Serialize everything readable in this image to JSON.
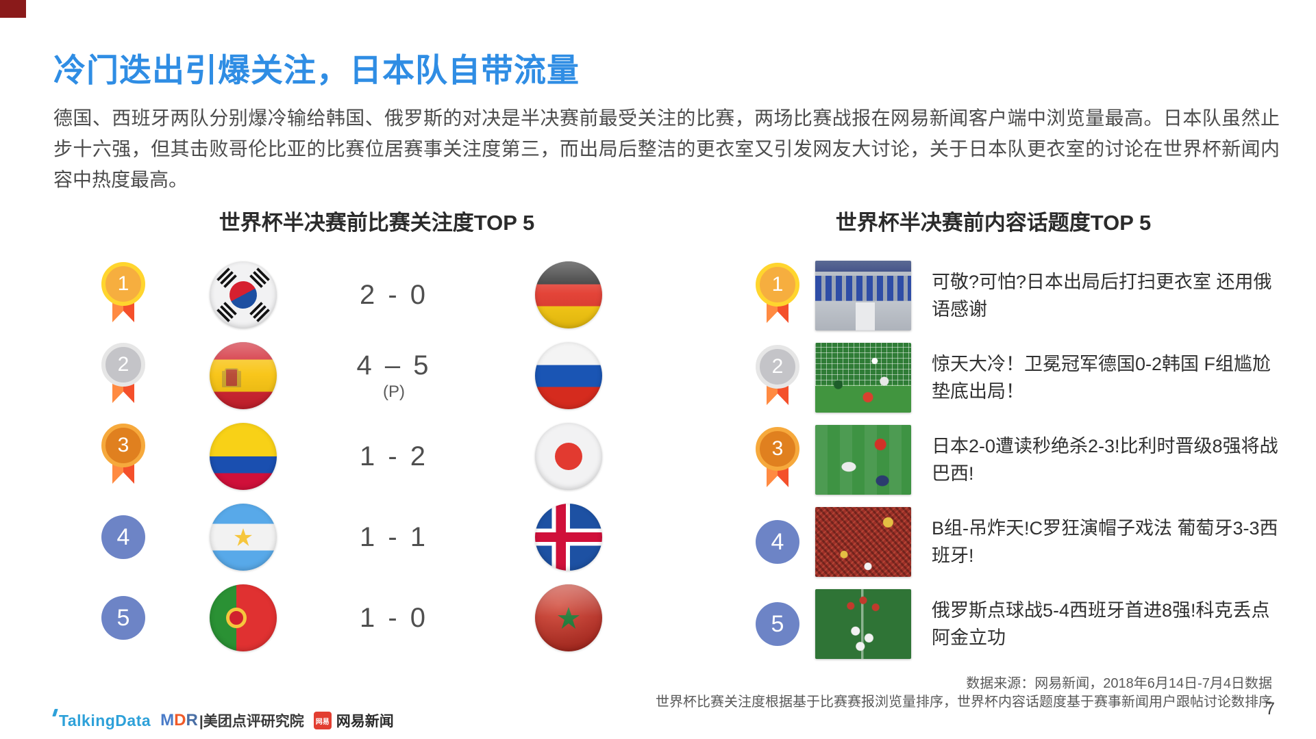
{
  "page": {
    "title": "冷门迭出引爆关注，日本队自带流量",
    "body": "德国、西班牙两队分别爆冷输给韩国、俄罗斯的对决是半决赛前最受关注的比赛，两场比赛战报在网易新闻客户端中浏览量最高。日本队虽然止步十六强，但其击败哥伦比亚的比赛位居赛事关注度第三，而出局后整洁的更衣室又引发网友大讨论，关于日本队更衣室的讨论在世界杯新闻内容中热度最高。",
    "page_number": "7"
  },
  "left_section": {
    "title": "世界杯半决赛前比赛关注度TOP 5",
    "rows": [
      {
        "rank": "1",
        "home_flag": "south-korea",
        "score": "2 - 0",
        "score_note": "",
        "away_flag": "germany"
      },
      {
        "rank": "2",
        "home_flag": "spain",
        "score": "4 – 5",
        "score_note": "(P)",
        "away_flag": "russia"
      },
      {
        "rank": "3",
        "home_flag": "colombia",
        "score": "1 - 2",
        "score_note": "",
        "away_flag": "japan"
      },
      {
        "rank": "4",
        "home_flag": "argentina",
        "score": "1 - 1",
        "score_note": "",
        "away_flag": "iceland"
      },
      {
        "rank": "5",
        "home_flag": "portugal",
        "score": "1 - 0",
        "score_note": "",
        "away_flag": "morocco"
      }
    ]
  },
  "right_section": {
    "title": "世界杯半决赛前内容话题度TOP 5",
    "rows": [
      {
        "rank": "1",
        "thumbnail": "locker-room",
        "headline": "可敬?可怕?日本出局后打扫更衣室 还用俄语感谢"
      },
      {
        "rank": "2",
        "thumbnail": "goal-net",
        "headline": "惊天大冷！卫冕冠军德国0-2韩国 F组尴尬垫底出局！"
      },
      {
        "rank": "3",
        "thumbnail": "players-on-pitch",
        "headline": "日本2-0遭读秒绝杀2-3!比利时晋级8强将战巴西!"
      },
      {
        "rank": "4",
        "thumbnail": "red-crowd",
        "headline": "B组-吊炸天!C罗狂演帽子戏法 葡萄牙3-3西班牙!"
      },
      {
        "rank": "5",
        "thumbnail": "pitch-celebration",
        "headline": "俄罗斯点球战5-4西班牙首进8强!科克丢点阿金立功"
      }
    ]
  },
  "footer": {
    "source_line1": "数据来源：网易新闻，2018年6月14日-7月4日数据",
    "source_line2": "世界杯比赛关注度根据基于比赛赛报浏览量排序，世界杯内容话题度基于赛事新闻用户跟帖讨论数排序",
    "logos": {
      "talkingdata": "TalkingData",
      "mdr": "MDR",
      "mdr_suffix": "|美团点评研究院",
      "netease_badge": "网易",
      "netease": "网易新闻"
    }
  },
  "colors": {
    "title_blue": "#2F8DE4",
    "rank_blue": "#6D84C6",
    "medal_gold": "#F6AE3F",
    "medal_silver": "#C4C4C8",
    "medal_bronze": "#E0801F",
    "ribbon_orange": "#FF7E39"
  }
}
